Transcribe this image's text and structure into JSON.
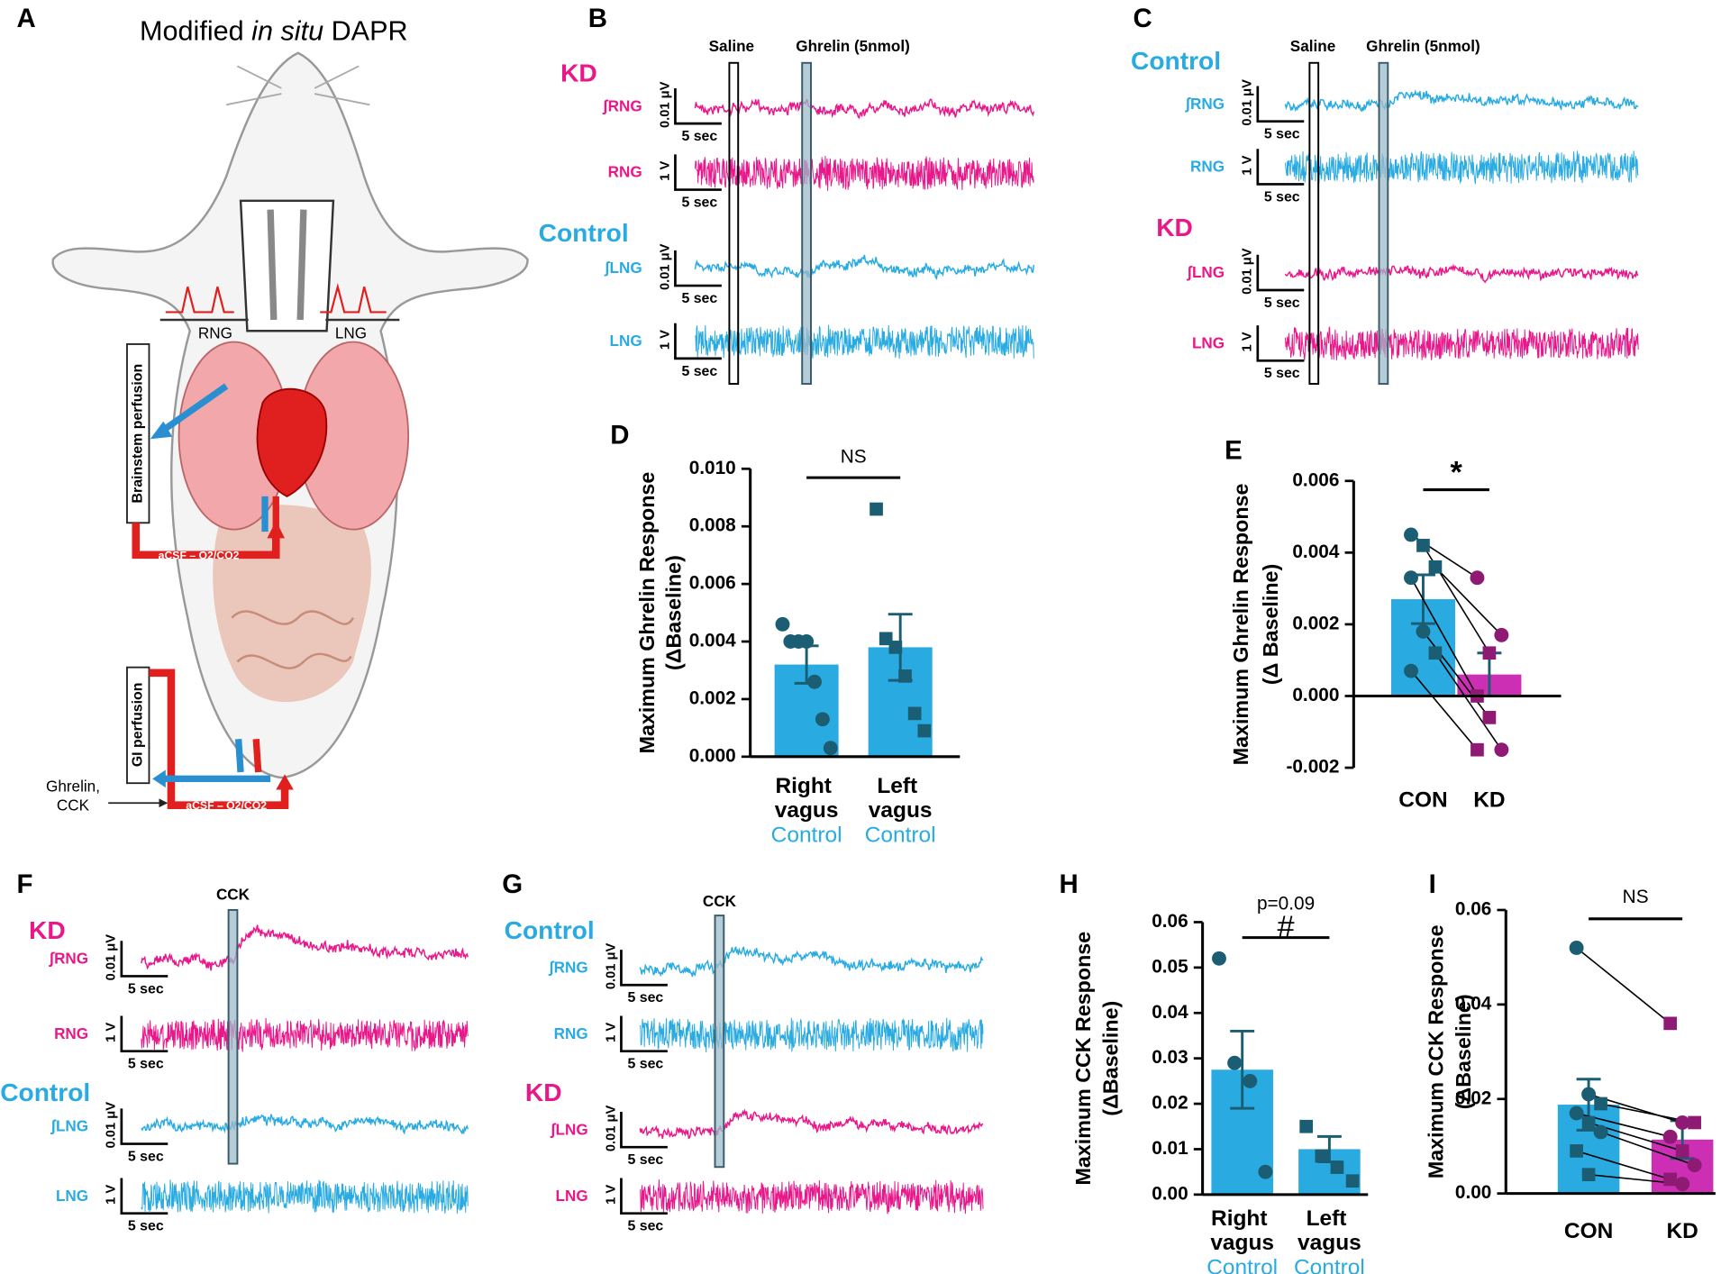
{
  "figure": {
    "panel_letters": [
      "A",
      "B",
      "C",
      "D",
      "E",
      "F",
      "G",
      "H",
      "I"
    ],
    "panel_a": {
      "title": [
        "Modified ",
        "in situ",
        " DAPR"
      ],
      "rng": "RNG",
      "lng": "LNG",
      "brainstem": "Brainstem perfusion",
      "acsf_top": "aCSF – O2/CO2",
      "gi": "GI perfusion",
      "drugs": [
        "Ghrelin,",
        "CCK"
      ],
      "acsf_bottom": "aCSF – O2/CO2"
    },
    "trace_panels": [
      {
        "markers": [
          "Saline",
          "Ghrelin (5nmol)"
        ],
        "groups": [
          {
            "name": "KD",
            "color": "#e8178a",
            "channels": [
              {
                "label": "ʃRNG",
                "scale_v": "0.01 μV",
                "scale_t": "5 sec"
              },
              {
                "label": "RNG",
                "scale_v": "1 V",
                "scale_t": "5 sec"
              }
            ]
          },
          {
            "name": "Control",
            "color": "#29abe2",
            "channels": [
              {
                "label": "ʃLNG",
                "scale_v": "0.01 μV",
                "scale_t": "5 sec"
              },
              {
                "label": "LNG",
                "scale_v": "1 V",
                "scale_t": "5 sec"
              }
            ]
          }
        ]
      },
      {
        "markers": [
          "Saline",
          "Ghrelin (5nmol)"
        ],
        "groups": [
          {
            "name": "Control",
            "color": "#29abe2",
            "channels": [
              {
                "label": "ʃRNG",
                "scale_v": "0.01 μV",
                "scale_t": "5 sec"
              },
              {
                "label": "RNG",
                "scale_v": "1 V",
                "scale_t": "5 sec"
              }
            ]
          },
          {
            "name": "KD",
            "color": "#e8178a",
            "channels": [
              {
                "label": "ʃLNG",
                "scale_v": "0.01 μV",
                "scale_t": "5 sec"
              },
              {
                "label": "LNG",
                "scale_v": "1 V",
                "scale_t": "5 sec"
              }
            ]
          }
        ]
      },
      {
        "markers": [
          "CCK"
        ],
        "groups": [
          {
            "name": "KD",
            "color": "#e8178a",
            "channels": [
              {
                "label": "ʃRNG",
                "scale_v": "0.01 μV",
                "scale_t": "5 sec"
              },
              {
                "label": "RNG",
                "scale_v": "1 V",
                "scale_t": "5 sec"
              }
            ]
          },
          {
            "name": "Control",
            "color": "#29abe2",
            "channels": [
              {
                "label": "ʃLNG",
                "scale_v": "0.01 μV",
                "scale_t": "5 sec"
              },
              {
                "label": "LNG",
                "scale_v": "1 V",
                "scale_t": "5 sec"
              }
            ]
          }
        ]
      },
      {
        "markers": [
          "CCK"
        ],
        "groups": [
          {
            "name": "Control",
            "color": "#29abe2",
            "channels": [
              {
                "label": "ʃRNG",
                "scale_v": "0.01 μV",
                "scale_t": "5 sec"
              },
              {
                "label": "RNG",
                "scale_v": "1 V",
                "scale_t": "5 sec"
              }
            ]
          },
          {
            "name": "KD",
            "color": "#e8178a",
            "channels": [
              {
                "label": "ʃLNG",
                "scale_v": "0.01 μV",
                "scale_t": "5 sec"
              },
              {
                "label": "LNG",
                "scale_v": "1 V",
                "scale_t": "5 sec"
              }
            ]
          }
        ]
      }
    ]
  },
  "chart_data": [
    {
      "type": "bar",
      "ylabel": [
        "Maximum Ghrelin Response",
        "(ΔBaseline)"
      ],
      "categories": [
        "Right vagus",
        "Left vagus"
      ],
      "category_sublabels": [
        "Control",
        "Control"
      ],
      "sublabel_color": "#29abe2",
      "values": [
        0.0032,
        0.0038
      ],
      "errors": [
        0.00065,
        0.00115
      ],
      "colors": [
        "#29abe2",
        "#29abe2"
      ],
      "points": [
        {
          "color": "#1b5e74",
          "markers": [
            "circle",
            "circle",
            "circle",
            "circle",
            "circle",
            "circle",
            "circle"
          ],
          "values": [
            0.0046,
            0.004,
            0.004,
            0.004,
            0.0026,
            0.0013,
            0.0003
          ]
        },
        {
          "color": "#1b5e74",
          "markers": [
            "square",
            "square",
            "square",
            "square",
            "square",
            "square"
          ],
          "values": [
            0.0086,
            0.0041,
            0.0038,
            0.0028,
            0.0015,
            0.0009
          ]
        }
      ],
      "paired": false,
      "annotation": [
        "NS"
      ],
      "ylim": [
        0,
        0.01
      ],
      "yticks": [
        {
          "value": 0,
          "label": "0.000"
        },
        0.002,
        0.004,
        0.006,
        0.008,
        {
          "value": 0.01,
          "label": "0.010"
        }
      ]
    },
    {
      "type": "bar",
      "ylabel": [
        "Maximum Ghrelin Response",
        "(Δ Baseline)"
      ],
      "categories": [
        "CON",
        "KD"
      ],
      "values": [
        0.0027,
        0.0006
      ],
      "errors": [
        0.00068,
        0.0006
      ],
      "colors": [
        "#29abe2",
        "#cc2fb4"
      ],
      "points": [
        {
          "color": "#1b5e74",
          "markers": [
            "circle",
            "square",
            "square",
            "circle",
            "circle",
            "square",
            "circle"
          ],
          "values": [
            0.0045,
            0.0042,
            0.0036,
            0.0033,
            0.0018,
            0.0012,
            0.0007
          ]
        },
        {
          "color": "#8e1a74",
          "markers": [
            "circle",
            "square",
            "circle",
            "square",
            "square",
            "circle",
            "square"
          ],
          "values": [
            0.0033,
            0.0012,
            0.0017,
            0.0,
            -0.0006,
            -0.0015,
            -0.0015
          ]
        }
      ],
      "paired": true,
      "annotation": [
        "*"
      ],
      "ylim": [
        -0.002,
        0.006
      ],
      "yticks": [
        -0.002,
        {
          "value": 0,
          "label": "0.000"
        },
        0.002,
        0.004,
        0.006
      ]
    },
    {
      "type": "bar",
      "ylabel": [
        "Maximum CCK Response",
        "(ΔBaseline)"
      ],
      "categories": [
        "Right vagus",
        "Left vagus"
      ],
      "category_sublabels": [
        "Control",
        "Control"
      ],
      "sublabel_color": "#29abe2",
      "values": [
        0.0275,
        0.01
      ],
      "errors": [
        0.0085,
        0.0028
      ],
      "colors": [
        "#29abe2",
        "#29abe2"
      ],
      "points": [
        {
          "color": "#1b5e74",
          "markers": [
            "circle",
            "circle",
            "circle",
            "circle"
          ],
          "values": [
            0.052,
            0.029,
            0.025,
            0.005
          ]
        },
        {
          "color": "#1b5e74",
          "markers": [
            "square",
            "square",
            "square",
            "square"
          ],
          "values": [
            0.015,
            0.0085,
            0.006,
            0.003
          ]
        }
      ],
      "paired": false,
      "annotation": [
        "p=0.09",
        "#"
      ],
      "ylim": [
        0,
        0.06
      ],
      "yticks": [
        {
          "value": 0,
          "label": "0.00"
        },
        0.01,
        0.02,
        0.03,
        0.04,
        0.05,
        0.06
      ]
    },
    {
      "type": "bar",
      "ylabel": [
        "Maximum CCK Response",
        "(ΔBaseline)"
      ],
      "categories": [
        "CON",
        "KD"
      ],
      "values": [
        0.0188,
        0.0114
      ],
      "errors": [
        0.0054,
        0.004
      ],
      "colors": [
        "#29abe2",
        "#cc2fb4"
      ],
      "points": [
        {
          "color": "#1b5e74",
          "markers": [
            "circle",
            "circle",
            "square",
            "circle",
            "square",
            "circle",
            "square",
            "square"
          ],
          "values": [
            0.052,
            0.021,
            0.019,
            0.017,
            0.015,
            0.013,
            0.009,
            0.004
          ]
        },
        {
          "color": "#8e1a74",
          "markers": [
            "square",
            "circle",
            "square",
            "circle",
            "square",
            "circle",
            "square",
            "circle"
          ],
          "values": [
            0.036,
            0.015,
            0.015,
            0.012,
            0.009,
            0.006,
            0.003,
            0.002
          ]
        }
      ],
      "paired": true,
      "annotation": [
        "NS"
      ],
      "ylim": [
        0,
        0.06
      ],
      "yticks": [
        {
          "value": 0,
          "label": "0.00"
        },
        0.02,
        0.04,
        0.06
      ]
    }
  ]
}
